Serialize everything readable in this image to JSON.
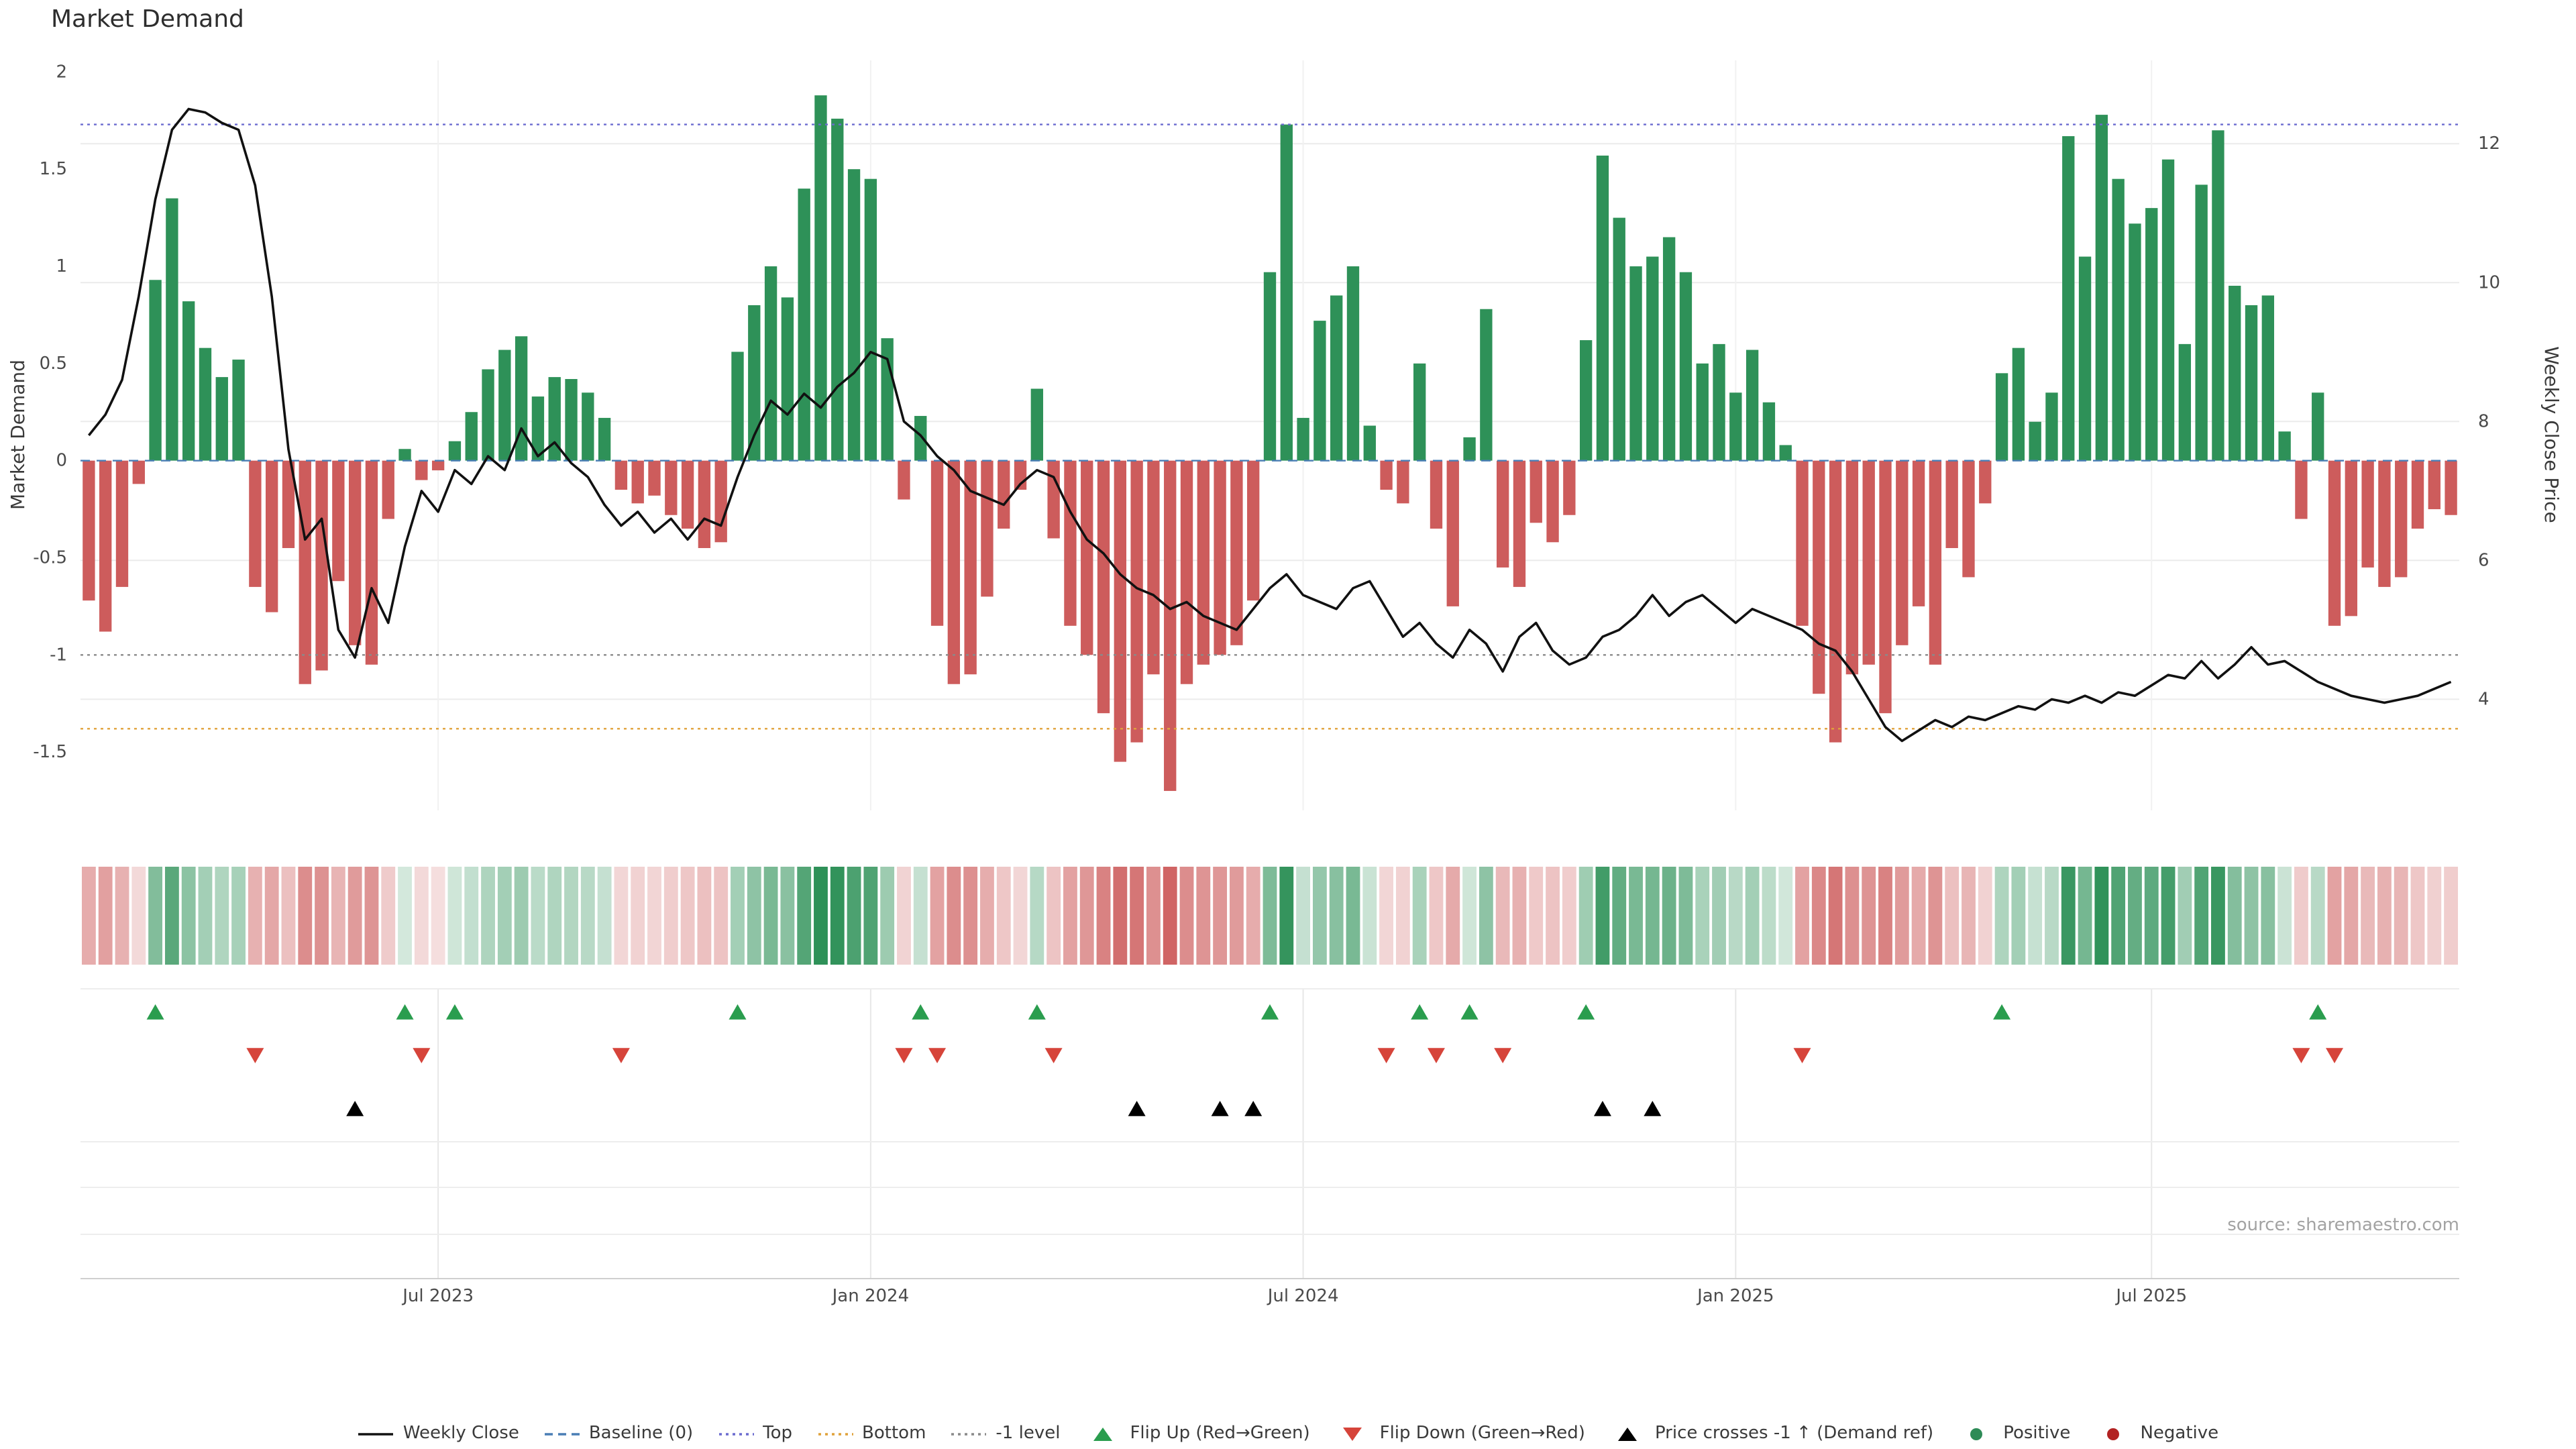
{
  "title": "Market Demand",
  "source": "source: sharemaestro.com",
  "left_axis": {
    "label": "Market Demand",
    "range": [
      -1.8,
      2.06
    ],
    "ticks": [
      {
        "v": 2,
        "label": "2"
      },
      {
        "v": 1.5,
        "label": "1.5"
      },
      {
        "v": 1,
        "label": "1"
      },
      {
        "v": 0.5,
        "label": "0.5"
      },
      {
        "v": 0,
        "label": "0"
      },
      {
        "v": -0.5,
        "label": "-0.5"
      },
      {
        "v": -1,
        "label": "-1"
      },
      {
        "v": -1.5,
        "label": "-1.5"
      }
    ]
  },
  "right_axis": {
    "label": "Weekly Close Price",
    "range": [
      2.4,
      13.2
    ],
    "ticks": [
      {
        "v": 12,
        "label": "12"
      },
      {
        "v": 10,
        "label": "10"
      },
      {
        "v": 8,
        "label": "8"
      },
      {
        "v": 6,
        "label": "6"
      },
      {
        "v": 4,
        "label": "4"
      }
    ]
  },
  "colors": {
    "positive": "#2e9158",
    "negative": "#cd5c5c",
    "line": "#111111",
    "flip_up": "#2a9d4e",
    "flip_down": "#d6443a",
    "price_cross": "#000000",
    "baseline": "#4a7eb5",
    "top": "#6b6bcf",
    "bottom": "#e0a23a",
    "minus_one": "#8a8a8a"
  },
  "chart_data": {
    "type": "combo",
    "n_points": 143,
    "series": [
      {
        "name": "Market Demand",
        "type": "bar",
        "axis": "left",
        "values": [
          -0.72,
          -0.88,
          -0.65,
          -0.12,
          0.93,
          1.35,
          0.82,
          0.58,
          0.43,
          0.52,
          -0.65,
          -0.78,
          -0.45,
          -1.15,
          -1.08,
          -0.62,
          -0.95,
          -1.05,
          -0.3,
          0.06,
          -0.1,
          -0.05,
          0.1,
          0.25,
          0.47,
          0.57,
          0.64,
          0.33,
          0.43,
          0.42,
          0.35,
          0.22,
          -0.15,
          -0.22,
          -0.18,
          -0.28,
          -0.35,
          -0.45,
          -0.42,
          0.56,
          0.8,
          1.0,
          0.84,
          1.4,
          1.88,
          1.76,
          1.5,
          1.45,
          0.63,
          -0.2,
          0.23,
          -0.85,
          -1.15,
          -1.1,
          -0.7,
          -0.35,
          -0.15,
          0.37,
          -0.4,
          -0.85,
          -1.0,
          -1.3,
          -1.55,
          -1.45,
          -1.1,
          -1.7,
          -1.15,
          -1.05,
          -1.0,
          -0.95,
          -0.72,
          0.97,
          1.73,
          0.22,
          0.72,
          0.85,
          1.0,
          0.18,
          -0.15,
          -0.22,
          0.5,
          -0.35,
          -0.75,
          0.12,
          0.78,
          -0.55,
          -0.65,
          -0.32,
          -0.42,
          -0.28,
          0.62,
          1.57,
          1.25,
          1.0,
          1.05,
          1.15,
          0.97,
          0.5,
          0.6,
          0.35,
          0.57,
          0.3,
          0.08,
          -0.85,
          -1.2,
          -1.45,
          -1.1,
          -1.05,
          -1.3,
          -0.95,
          -0.75,
          -1.05,
          -0.45,
          -0.6,
          -0.22,
          0.45,
          0.58,
          0.2,
          0.35,
          1.67,
          1.05,
          1.78,
          1.45,
          1.22,
          1.3,
          1.55,
          0.6,
          1.42,
          1.7,
          0.9,
          0.8,
          0.85,
          0.15,
          -0.3,
          0.35,
          -0.85,
          -0.8,
          -0.55,
          -0.65,
          -0.6,
          -0.35,
          -0.25,
          -0.28
        ]
      },
      {
        "name": "Weekly Close",
        "type": "line",
        "axis": "right",
        "values": [
          7.8,
          8.1,
          8.6,
          9.8,
          11.2,
          12.2,
          12.5,
          12.45,
          12.3,
          12.2,
          11.4,
          9.8,
          7.6,
          6.3,
          6.6,
          5.0,
          4.6,
          5.6,
          5.1,
          6.2,
          7.0,
          6.7,
          7.3,
          7.1,
          7.5,
          7.3,
          7.9,
          7.5,
          7.7,
          7.4,
          7.2,
          6.8,
          6.5,
          6.7,
          6.4,
          6.6,
          6.3,
          6.6,
          6.5,
          7.2,
          7.8,
          8.3,
          8.1,
          8.4,
          8.2,
          8.5,
          8.7,
          9.0,
          8.9,
          8.0,
          7.8,
          7.5,
          7.3,
          7.0,
          6.9,
          6.8,
          7.1,
          7.3,
          7.2,
          6.7,
          6.3,
          6.1,
          5.8,
          5.6,
          5.5,
          5.3,
          5.4,
          5.2,
          5.1,
          5.0,
          5.3,
          5.6,
          5.8,
          5.5,
          5.4,
          5.3,
          5.6,
          5.7,
          5.3,
          4.9,
          5.1,
          4.8,
          4.6,
          5.0,
          4.8,
          4.4,
          4.9,
          5.1,
          4.7,
          4.5,
          4.6,
          4.9,
          5.0,
          5.2,
          5.5,
          5.2,
          5.4,
          5.5,
          5.3,
          5.1,
          5.3,
          5.2,
          5.1,
          5.0,
          4.8,
          4.7,
          4.4,
          4.0,
          3.6,
          3.4,
          3.55,
          3.7,
          3.6,
          3.75,
          3.7,
          3.8,
          3.9,
          3.85,
          4.0,
          3.95,
          4.05,
          3.95,
          4.1,
          4.05,
          4.2,
          4.35,
          4.3,
          4.55,
          4.3,
          4.5,
          4.75,
          4.5,
          4.55,
          4.4,
          4.25,
          4.15,
          4.05,
          4.0,
          3.95,
          4.0,
          4.05,
          4.15,
          4.25
        ]
      }
    ],
    "x_ticks": [
      {
        "index": 21,
        "label": "Jul 2023"
      },
      {
        "index": 47,
        "label": "Jan 2024"
      },
      {
        "index": 73,
        "label": "Jul 2024"
      },
      {
        "index": 99,
        "label": "Jan 2025"
      },
      {
        "index": 124,
        "label": "Jul 2025"
      }
    ],
    "reference_lines": [
      {
        "name": "Baseline (0)",
        "value": 0,
        "style": "dashed",
        "color": "#4a7eb5"
      },
      {
        "name": "Top",
        "value": 1.73,
        "style": "dotted",
        "color": "#6b6bcf"
      },
      {
        "name": "Bottom",
        "value": -1.38,
        "style": "dotted",
        "color": "#e0a23a"
      },
      {
        "name": "-1 level",
        "value": -1,
        "style": "dotted",
        "color": "#8a8a8a"
      }
    ],
    "markers": {
      "flip_up": [
        4,
        19,
        22,
        39,
        50,
        57,
        71,
        80,
        83,
        90,
        115,
        134
      ],
      "flip_down": [
        10,
        20,
        32,
        49,
        51,
        58,
        78,
        81,
        85,
        103,
        133,
        135
      ],
      "price_cross": [
        16,
        63,
        68,
        70,
        91,
        94
      ]
    },
    "heatmap_strip": "intensity strip below main chart derived from Market Demand sign and magnitude"
  },
  "legend": [
    {
      "label": "Weekly Close",
      "symbol": "line",
      "dash": "solid",
      "color": "#111111"
    },
    {
      "label": "Baseline (0)",
      "symbol": "line",
      "dash": "dashed",
      "color": "#4a7eb5"
    },
    {
      "label": "Top",
      "symbol": "line",
      "dash": "dotted",
      "color": "#6b6bcf"
    },
    {
      "label": "Bottom",
      "symbol": "line",
      "dash": "dotted",
      "color": "#e0a23a"
    },
    {
      "label": "-1 level",
      "symbol": "line",
      "dash": "dotted",
      "color": "#8a8a8a"
    },
    {
      "label": "Flip Up (Red→Green)",
      "symbol": "triangle-up",
      "color": "#2a9d4e"
    },
    {
      "label": "Flip Down (Green→Red)",
      "symbol": "triangle-down",
      "color": "#d6443a"
    },
    {
      "label": "Price crosses -1 ↑ (Demand ref)",
      "symbol": "triangle-up",
      "color": "#000000"
    },
    {
      "label": "Positive",
      "symbol": "dot",
      "color": "#2e8b57"
    },
    {
      "label": "Negative",
      "symbol": "dot",
      "color": "#b22222"
    }
  ]
}
